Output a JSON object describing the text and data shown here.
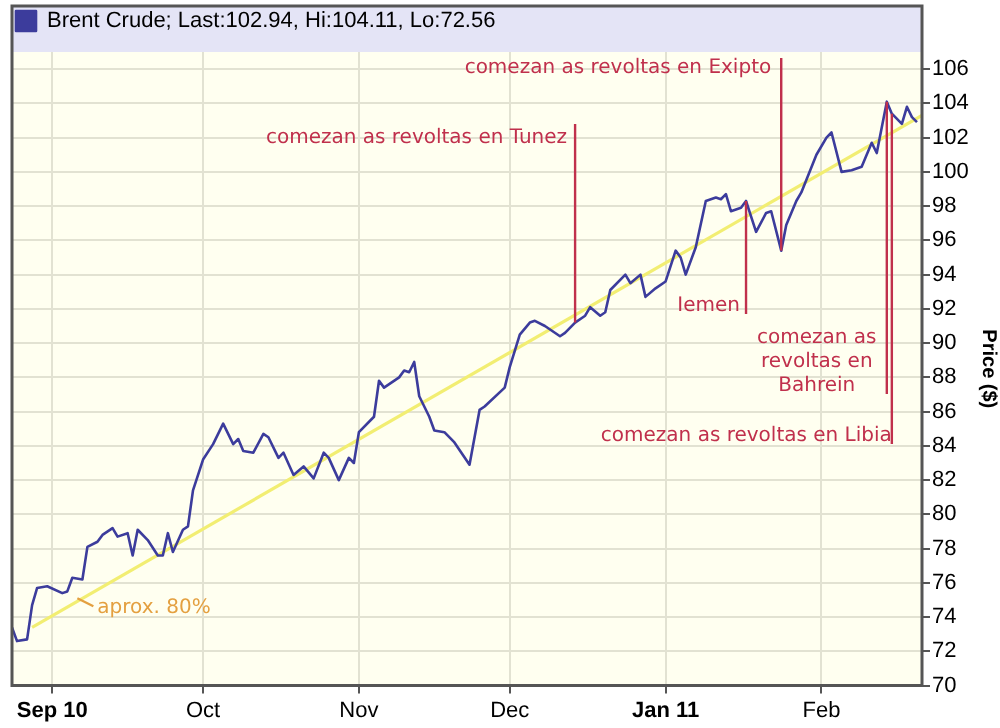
{
  "chart_data": {
    "type": "line",
    "ylabel": "Price ($)",
    "xlim": [
      "2010-08-24",
      "2011-02-21"
    ],
    "xticks": [
      {
        "value": "2010-09-01",
        "label": "Sep 10"
      },
      {
        "value": "2010-10-01",
        "label": "Oct"
      },
      {
        "value": "2010-11-01",
        "label": "Nov"
      },
      {
        "value": "2010-12-01",
        "label": "Dec"
      },
      {
        "value": "2011-01-01",
        "label": "Jan 11"
      },
      {
        "value": "2011-02-01",
        "label": "Feb"
      }
    ],
    "ylim": [
      70,
      107
    ],
    "yticks": [
      70,
      72,
      74,
      76,
      78,
      80,
      82,
      84,
      86,
      88,
      90,
      92,
      94,
      96,
      98,
      100,
      102,
      104,
      106
    ],
    "grid": true,
    "legend": "top left",
    "marker": "none",
    "line_style": "solid",
    "series": [
      {
        "name": "Brent Crude; Last:102.94, Hi:104.11, Lo:72.56",
        "color": "#3c3c9c",
        "x": [
          "2010-08-24",
          "2010-08-25",
          "2010-08-27",
          "2010-08-28",
          "2010-08-29",
          "2010-08-31",
          "2010-09-03",
          "2010-09-04",
          "2010-09-05",
          "2010-09-07",
          "2010-09-08",
          "2010-09-10",
          "2010-09-11",
          "2010-09-13",
          "2010-09-14",
          "2010-09-16",
          "2010-09-17",
          "2010-09-18",
          "2010-09-20",
          "2010-09-22",
          "2010-09-23",
          "2010-09-24",
          "2010-09-25",
          "2010-09-27",
          "2010-09-28",
          "2010-09-29",
          "2010-10-01",
          "2010-10-03",
          "2010-10-05",
          "2010-10-07",
          "2010-10-08",
          "2010-10-09",
          "2010-10-11",
          "2010-10-13",
          "2010-10-14",
          "2010-10-16",
          "2010-10-17",
          "2010-10-19",
          "2010-10-21",
          "2010-10-23",
          "2010-10-25",
          "2010-10-26",
          "2010-10-28",
          "2010-10-30",
          "2010-10-31",
          "2010-11-01",
          "2010-11-04",
          "2010-11-05",
          "2010-11-06",
          "2010-11-09",
          "2010-11-10",
          "2010-11-11",
          "2010-11-12",
          "2010-11-13",
          "2010-11-15",
          "2010-11-16",
          "2010-11-18",
          "2010-11-20",
          "2010-11-23",
          "2010-11-25",
          "2010-11-26",
          "2010-11-30",
          "2010-12-01",
          "2010-12-03",
          "2010-12-05",
          "2010-12-06",
          "2010-12-08",
          "2010-12-11",
          "2010-12-12",
          "2010-12-14",
          "2010-12-16",
          "2010-12-17",
          "2010-12-19",
          "2010-12-20",
          "2010-12-21",
          "2010-12-24",
          "2010-12-25",
          "2010-12-27",
          "2010-12-28",
          "2010-12-30",
          "2011-01-01",
          "2011-01-03",
          "2011-01-04",
          "2011-01-05",
          "2011-01-07",
          "2011-01-09",
          "2011-01-11",
          "2011-01-12",
          "2011-01-13",
          "2011-01-14",
          "2011-01-16",
          "2011-01-17",
          "2011-01-19",
          "2011-01-21",
          "2011-01-22",
          "2011-01-24",
          "2011-01-25",
          "2011-01-27",
          "2011-01-28",
          "2011-01-31",
          "2011-02-02",
          "2011-02-03",
          "2011-02-05",
          "2011-02-07",
          "2011-02-09",
          "2011-02-11",
          "2011-02-12",
          "2011-02-14",
          "2011-02-15",
          "2011-02-17",
          "2011-02-18",
          "2011-02-19",
          "2011-02-20"
        ],
        "values": [
          73.4,
          72.6,
          72.7,
          74.7,
          75.7,
          75.8,
          75.4,
          75.5,
          76.3,
          76.2,
          78.1,
          78.4,
          78.8,
          79.2,
          78.7,
          78.9,
          77.6,
          79.1,
          78.5,
          77.6,
          77.6,
          78.9,
          77.8,
          79.1,
          79.3,
          81.4,
          83.2,
          84.1,
          85.3,
          84.1,
          84.4,
          83.7,
          83.6,
          84.7,
          84.5,
          83.3,
          83.6,
          82.3,
          82.8,
          82.1,
          83.6,
          83.3,
          82.0,
          83.3,
          83.0,
          84.8,
          85.7,
          87.8,
          87.4,
          88.0,
          88.4,
          88.3,
          88.9,
          86.9,
          85.7,
          84.9,
          84.8,
          84.2,
          82.9,
          86.1,
          86.3,
          87.4,
          88.6,
          90.5,
          91.2,
          91.3,
          91.0,
          90.4,
          90.6,
          91.2,
          91.6,
          92.1,
          91.6,
          91.8,
          93.1,
          94.0,
          93.5,
          94.0,
          92.7,
          93.2,
          93.6,
          95.4,
          95.0,
          94.0,
          95.6,
          98.3,
          98.5,
          98.4,
          98.7,
          97.7,
          97.9,
          98.3,
          96.5,
          97.6,
          97.7,
          95.4,
          96.9,
          98.3,
          98.8,
          101.0,
          102.0,
          102.3,
          100.0,
          100.1,
          100.3,
          101.7,
          101.1,
          104.1,
          103.4,
          102.8,
          103.8,
          103.2,
          102.9
        ]
      },
      {
        "type": "line",
        "color": "#f2ee72",
        "x": [
          "2010-08-28",
          "2011-02-21"
        ],
        "values": [
          73.4,
          103.3
        ]
      }
    ],
    "annotations": [
      {
        "text": "aprox. 80%",
        "x": "2010-09-06",
        "y": 75.1
      },
      {
        "text": "comezan as revoltas en Tunez",
        "x": "2010-12-14",
        "y": 91.2
      },
      {
        "text": "comezan as revoltas en Exipto",
        "x": "2011-01-24",
        "y": 95.4
      },
      {
        "text": "Iemen",
        "x": "2011-01-17",
        "y": 98.3
      },
      {
        "text": "comezan as\nrevoltas en\nBahrein",
        "x": "2011-02-14",
        "y": 104.1
      },
      {
        "text": "comezan as revoltas en Libia",
        "x": "2011-02-15",
        "y": 103.4
      }
    ]
  }
}
